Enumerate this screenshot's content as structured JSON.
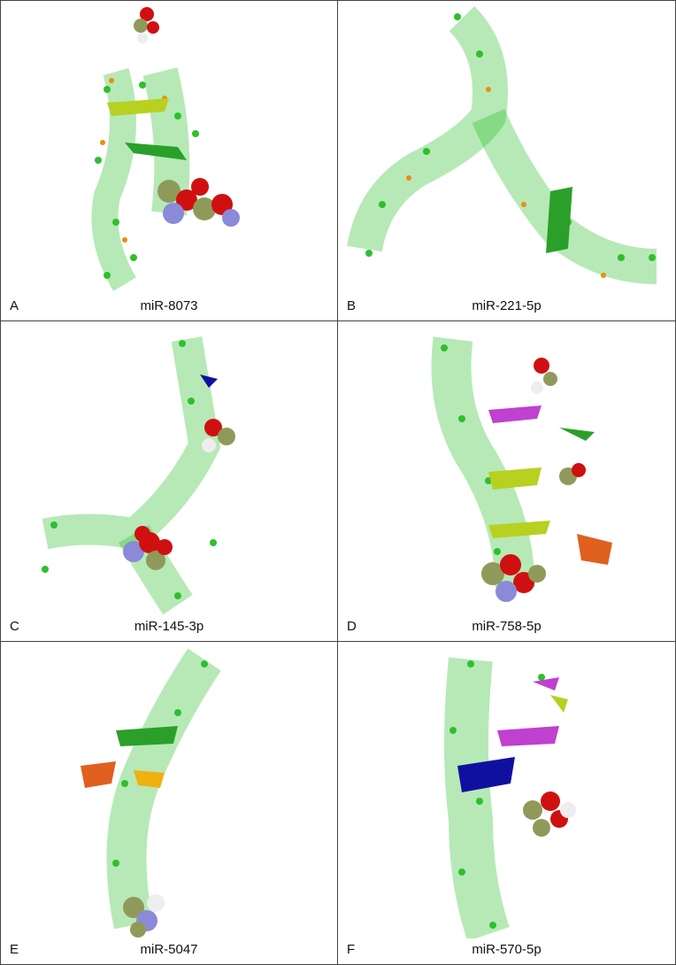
{
  "panels": [
    {
      "letter": "A",
      "caption": "miR-8073"
    },
    {
      "letter": "B",
      "caption": "miR-221-5p"
    },
    {
      "letter": "C",
      "caption": "miR-145-3p"
    },
    {
      "letter": "D",
      "caption": "miR-758-5p"
    },
    {
      "letter": "E",
      "caption": "miR-5047"
    },
    {
      "letter": "F",
      "caption": "miR-570-5p"
    }
  ],
  "colors": {
    "carbon_green": "#2fbf2f",
    "oxygen_red": "#d01010",
    "phosphorus_orange": "#f08a10",
    "hydrogen_white": "#eeeeee",
    "nitrogen_blue": "#8a8ad8",
    "ligand_olive": "#8f9a5a",
    "helix_yellowgreen": "#b8d020",
    "helix_green": "#2aa02a",
    "helix_blue": "#1010a0",
    "helix_magenta": "#c040d0",
    "helix_orange": "#e06020"
  }
}
